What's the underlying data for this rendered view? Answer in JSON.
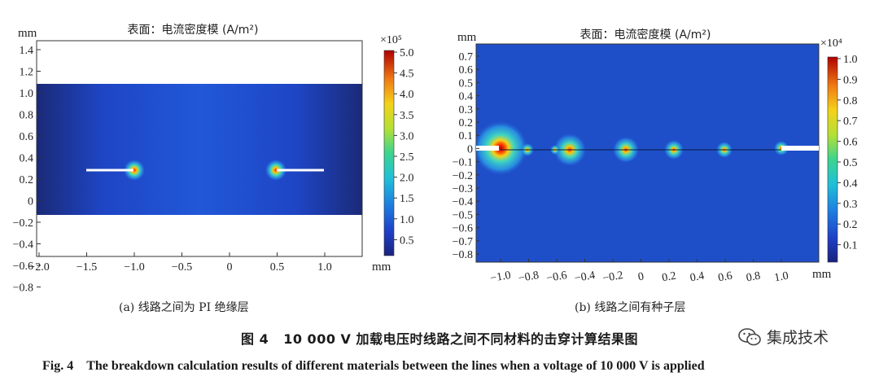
{
  "panels": [
    {
      "id": "a",
      "title": "表面：电流密度模 (A/m²)",
      "y_unit": "mm",
      "x_unit": "mm",
      "x_ticks": [
        "−2.0",
        "−1.5",
        "−1.0",
        "−0.5",
        "0",
        "0.5",
        "1.0"
      ],
      "y_ticks": [
        "1.4",
        "1.2",
        "1.0",
        "0.8",
        "0.6",
        "0.4",
        "0.2",
        "0",
        "−0.2",
        "−0.4",
        "−0.6",
        "−0.8"
      ],
      "colorbar": {
        "exponent": "×10⁵",
        "ticks": [
          "5.0",
          "4.5",
          "4.0",
          "3.5",
          "3.0",
          "2.5",
          "2.0",
          "1.5",
          "1.0",
          "0.5"
        ]
      },
      "subcaption": "(a) 线路之间为 PI 绝缘层"
    },
    {
      "id": "b",
      "title": "表面：电流密度模 (A/m²)",
      "y_unit": "mm",
      "x_unit": "mm",
      "x_ticks": [
        "−1.0",
        "−0.8",
        "−0.6",
        "−0.4",
        "−0.2",
        "0",
        "0.2",
        "0.4",
        "0.6",
        "0.8",
        "1.0"
      ],
      "y_ticks": [
        "0.7",
        "0.6",
        "0.5",
        "0.4",
        "0.3",
        "0.2",
        "0.1",
        "0",
        "−0.1",
        "−0.2",
        "−0.3",
        "−0.4",
        "−0.5",
        "−0.6",
        "−0.7",
        "−0.8"
      ],
      "colorbar": {
        "exponent": "×10⁴",
        "ticks": [
          "1.0",
          "0.9",
          "0.8",
          "0.7",
          "0.6",
          "0.5",
          "0.4",
          "0.3",
          "0.2",
          "0.1"
        ]
      },
      "subcaption": "(b) 线路之间有种子层"
    }
  ],
  "caption_zh": {
    "label": "图 4",
    "text": "10 000 V 加载电压时线路之间不同材料的击穿计算结果图"
  },
  "caption_en": {
    "label": "Fig. 4",
    "text": "The breakdown calculation results of different materials between the lines when a voltage of 10 000 V is applied"
  },
  "watermark": {
    "text": "集成技术",
    "icon": "wechat-icon"
  },
  "colors": {
    "field_bg": "#1f4fc8",
    "field_dark": "#1b2a6e",
    "hot": "#c00000",
    "wire": "#ffffff"
  }
}
